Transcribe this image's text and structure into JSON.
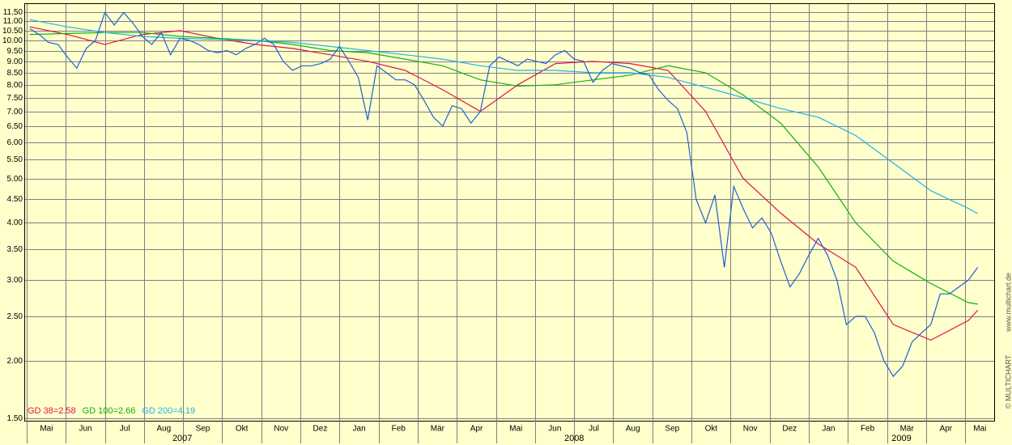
{
  "chart_data": {
    "type": "line",
    "log_scale": true,
    "grid": true,
    "legend_position": "bottom-left",
    "credits": [
      "© MULTICHART",
      "www.multichart.de"
    ],
    "xlim": [
      2007.33,
      2009.395
    ],
    "xticks": [
      {
        "value": 2007.3333,
        "label": "Mai"
      },
      {
        "value": 2007.4167,
        "label": "Jun"
      },
      {
        "value": 2007.5,
        "label": "Jul"
      },
      {
        "value": 2007.5833,
        "label": "Aug"
      },
      {
        "value": 2007.6667,
        "label": "Sep"
      },
      {
        "value": 2007.75,
        "label": "Okt"
      },
      {
        "value": 2007.8333,
        "label": "Nov"
      },
      {
        "value": 2007.9167,
        "label": "Dez"
      },
      {
        "value": 2008.0,
        "label": "Jan"
      },
      {
        "value": 2008.0833,
        "label": "Feb"
      },
      {
        "value": 2008.1667,
        "label": "Mär"
      },
      {
        "value": 2008.25,
        "label": "Apr"
      },
      {
        "value": 2008.3333,
        "label": "Mai"
      },
      {
        "value": 2008.4167,
        "label": "Jun"
      },
      {
        "value": 2008.5,
        "label": "Jul"
      },
      {
        "value": 2008.5833,
        "label": "Aug"
      },
      {
        "value": 2008.6667,
        "label": "Sep"
      },
      {
        "value": 2008.75,
        "label": "Okt"
      },
      {
        "value": 2008.8333,
        "label": "Nov"
      },
      {
        "value": 2008.9167,
        "label": "Dez"
      },
      {
        "value": 2009.0,
        "label": "Jan"
      },
      {
        "value": 2009.0833,
        "label": "Feb"
      },
      {
        "value": 2009.1667,
        "label": "Mär"
      },
      {
        "value": 2009.25,
        "label": "Apr"
      },
      {
        "value": 2009.3333,
        "label": "Mai"
      }
    ],
    "years": [
      2007,
      2008,
      2009
    ],
    "ylim": [
      1.475,
      12
    ],
    "yticks": [
      {
        "value": 1.5,
        "label": "1.50"
      },
      {
        "value": 2,
        "label": "2.00"
      },
      {
        "value": 2.5,
        "label": "2.50"
      },
      {
        "value": 3,
        "label": "3.00"
      },
      {
        "value": 3.5,
        "label": "3.50"
      },
      {
        "value": 4,
        "label": "4.00"
      },
      {
        "value": 4.5,
        "label": "4.50"
      },
      {
        "value": 5,
        "label": "5.00"
      },
      {
        "value": 5.5,
        "label": "5.50"
      },
      {
        "value": 6,
        "label": "6.00"
      },
      {
        "value": 6.5,
        "label": "6.50"
      },
      {
        "value": 7,
        "label": "7.00"
      },
      {
        "value": 7.5,
        "label": "7.50"
      },
      {
        "value": 8,
        "label": "8.00"
      },
      {
        "value": 8.5,
        "label": "8.50"
      },
      {
        "value": 9,
        "label": "9.00"
      },
      {
        "value": 9.5,
        "label": "9.50"
      },
      {
        "value": 10,
        "label": "10.00"
      },
      {
        "value": 10.5,
        "label": "10.50"
      },
      {
        "value": 11,
        "label": "11.00"
      },
      {
        "value": 11.5,
        "label": "11.50"
      }
    ],
    "series": [
      {
        "color": "#1f5fd6",
        "x": [
          2007.34,
          2007.36,
          2007.38,
          2007.4,
          2007.42,
          2007.44,
          2007.46,
          2007.48,
          2007.5,
          2007.52,
          2007.54,
          2007.56,
          2007.58,
          2007.6,
          2007.62,
          2007.64,
          2007.66,
          2007.68,
          2007.7,
          2007.72,
          2007.74,
          2007.76,
          2007.78,
          2007.8,
          2007.82,
          2007.84,
          2007.86,
          2007.88,
          2007.9,
          2007.92,
          2007.94,
          2007.96,
          2007.98,
          2008.0,
          2008.02,
          2008.04,
          2008.06,
          2008.08,
          2008.1,
          2008.12,
          2008.14,
          2008.16,
          2008.18,
          2008.2,
          2008.22,
          2008.24,
          2008.26,
          2008.28,
          2008.3,
          2008.32,
          2008.34,
          2008.36,
          2008.38,
          2008.4,
          2008.42,
          2008.44,
          2008.46,
          2008.48,
          2008.5,
          2008.52,
          2008.54,
          2008.56,
          2008.58,
          2008.6,
          2008.62,
          2008.64,
          2008.66,
          2008.68,
          2008.7,
          2008.72,
          2008.74,
          2008.76,
          2008.78,
          2008.8,
          2008.82,
          2008.84,
          2008.86,
          2008.88,
          2008.9,
          2008.92,
          2008.94,
          2008.96,
          2008.98,
          2009.0,
          2009.02,
          2009.04,
          2009.06,
          2009.08,
          2009.1,
          2009.12,
          2009.14,
          2009.16,
          2009.18,
          2009.2,
          2009.22,
          2009.24,
          2009.26,
          2009.28,
          2009.3,
          2009.32,
          2009.34,
          2009.36
        ],
        "values": [
          10.6,
          10.3,
          9.9,
          9.8,
          9.2,
          8.7,
          9.6,
          10.0,
          11.5,
          10.8,
          11.5,
          10.9,
          10.2,
          9.8,
          10.4,
          9.3,
          10.1,
          10.0,
          9.8,
          9.5,
          9.4,
          9.5,
          9.3,
          9.6,
          9.8,
          10.1,
          9.8,
          9.0,
          8.6,
          8.8,
          8.8,
          8.9,
          9.1,
          9.7,
          9.0,
          8.3,
          6.7,
          8.8,
          8.5,
          8.2,
          8.2,
          8.0,
          7.4,
          6.8,
          6.5,
          7.2,
          7.1,
          6.6,
          7.0,
          8.8,
          9.2,
          9.0,
          8.8,
          9.1,
          9.0,
          8.9,
          9.3,
          9.5,
          9.1,
          9.0,
          8.1,
          8.6,
          8.9,
          8.8,
          8.7,
          8.5,
          8.4,
          7.8,
          7.4,
          7.1,
          6.3,
          4.5,
          4.0,
          4.6,
          3.2,
          4.8,
          4.3,
          3.9,
          4.1,
          3.8,
          3.3,
          2.9,
          3.1,
          3.4,
          3.7,
          3.4,
          3.0,
          2.4,
          2.5,
          2.5,
          2.3,
          2.0,
          1.85,
          1.95,
          2.2,
          2.3,
          2.4,
          2.8,
          2.8,
          2.9,
          3.0,
          3.2
        ]
      },
      {
        "name": "GD 38=2.58",
        "color": "#e0104a",
        "x": [
          2007.34,
          2007.42,
          2007.5,
          2007.58,
          2007.66,
          2007.74,
          2007.82,
          2007.9,
          2007.98,
          2008.06,
          2008.14,
          2008.22,
          2008.3,
          2008.38,
          2008.46,
          2008.54,
          2008.62,
          2008.7,
          2008.78,
          2008.86,
          2008.94,
          2009.02,
          2009.1,
          2009.18,
          2009.26,
          2009.34,
          2009.36
        ],
        "values": [
          10.7,
          10.3,
          9.8,
          10.3,
          10.5,
          10.1,
          9.8,
          9.6,
          9.3,
          9.0,
          8.6,
          7.8,
          7.0,
          8.0,
          8.9,
          9.0,
          8.9,
          8.6,
          7.0,
          5.0,
          4.2,
          3.6,
          3.2,
          2.4,
          2.22,
          2.45,
          2.58
        ]
      },
      {
        "name": "GD 100=2.66",
        "color": "#10b010",
        "x": [
          2007.34,
          2007.42,
          2007.5,
          2007.58,
          2007.66,
          2007.74,
          2007.82,
          2007.9,
          2007.98,
          2008.06,
          2008.14,
          2008.22,
          2008.3,
          2008.38,
          2008.46,
          2008.54,
          2008.62,
          2008.7,
          2008.78,
          2008.86,
          2008.94,
          2009.02,
          2009.1,
          2009.18,
          2009.26,
          2009.34,
          2009.36
        ],
        "values": [
          10.3,
          10.35,
          10.4,
          10.4,
          10.2,
          10.1,
          10.0,
          9.8,
          9.5,
          9.4,
          9.1,
          8.8,
          8.2,
          7.95,
          8.0,
          8.2,
          8.4,
          8.8,
          8.5,
          7.6,
          6.6,
          5.3,
          4.0,
          3.3,
          2.95,
          2.68,
          2.66
        ]
      },
      {
        "name": "GD 200=4.19",
        "color": "#20b0f0",
        "x": [
          2007.34,
          2007.42,
          2007.5,
          2007.58,
          2007.66,
          2007.74,
          2007.82,
          2007.9,
          2007.98,
          2008.06,
          2008.14,
          2008.22,
          2008.3,
          2008.38,
          2008.46,
          2008.54,
          2008.62,
          2008.7,
          2008.78,
          2008.86,
          2008.94,
          2009.02,
          2009.1,
          2009.18,
          2009.26,
          2009.34,
          2009.36
        ],
        "values": [
          11.1,
          10.7,
          10.4,
          10.2,
          10.1,
          10.05,
          10.0,
          9.9,
          9.7,
          9.5,
          9.3,
          9.1,
          8.8,
          8.6,
          8.6,
          8.5,
          8.5,
          8.3,
          7.9,
          7.5,
          7.1,
          6.8,
          6.2,
          5.4,
          4.7,
          4.3,
          4.19
        ]
      }
    ]
  }
}
